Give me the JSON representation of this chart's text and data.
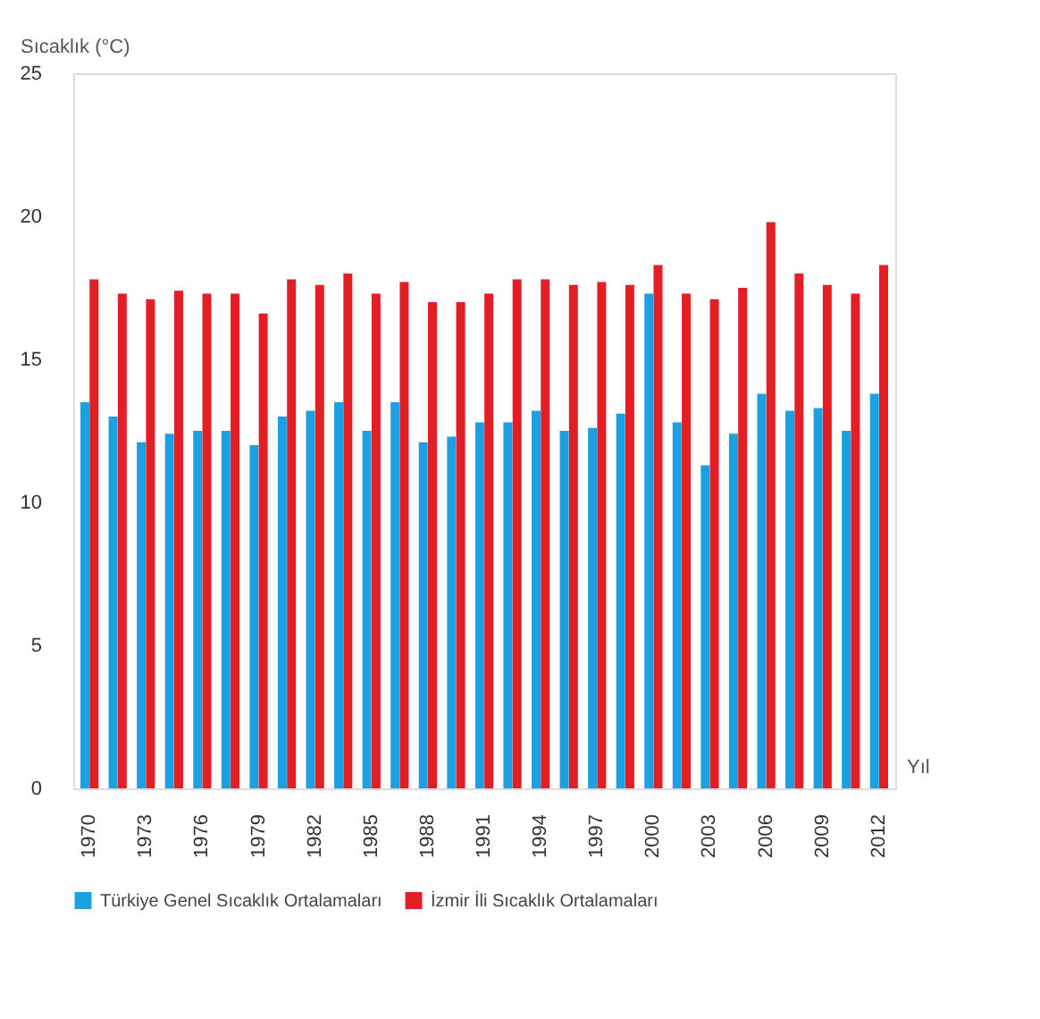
{
  "chart_data": {
    "type": "bar",
    "ylabel": "Sıcaklık (°C)",
    "xlabel": "Yıl",
    "categories": [
      "1970",
      null,
      "1973",
      null,
      "1976",
      null,
      "1979",
      null,
      "1982",
      null,
      "1985",
      null,
      "1988",
      null,
      "1991",
      null,
      "1994",
      null,
      "1997",
      null,
      "2000",
      null,
      "2003",
      null,
      "2006",
      null,
      "2009",
      null,
      "2012"
    ],
    "series": [
      {
        "name": "Türkiye Genel Sıcaklık Ortalamaları",
        "color": "#1ba1e2",
        "values": [
          13.5,
          13.0,
          12.1,
          12.4,
          12.5,
          12.5,
          12.0,
          13.0,
          13.2,
          13.5,
          12.5,
          13.5,
          12.1,
          12.3,
          12.8,
          12.8,
          13.2,
          12.5,
          12.6,
          13.1,
          17.3,
          12.8,
          11.3,
          12.4,
          13.8,
          13.2,
          13.3,
          12.5,
          13.8
        ]
      },
      {
        "name": "İzmir İli Sıcaklık Ortalamaları",
        "color": "#e31e24",
        "values": [
          17.8,
          17.3,
          17.1,
          17.4,
          17.3,
          17.3,
          16.6,
          17.8,
          17.6,
          18.0,
          17.3,
          17.7,
          17.0,
          17.0,
          17.3,
          17.8,
          17.8,
          17.6,
          17.7,
          17.6,
          18.3,
          17.3,
          17.1,
          17.5,
          19.8,
          18.0,
          17.6,
          17.3,
          18.3
        ]
      }
    ],
    "ylim": [
      0,
      25
    ],
    "yticks": [
      0,
      5,
      10,
      15,
      20,
      25
    ],
    "grid": false,
    "legend": "bottom"
  }
}
